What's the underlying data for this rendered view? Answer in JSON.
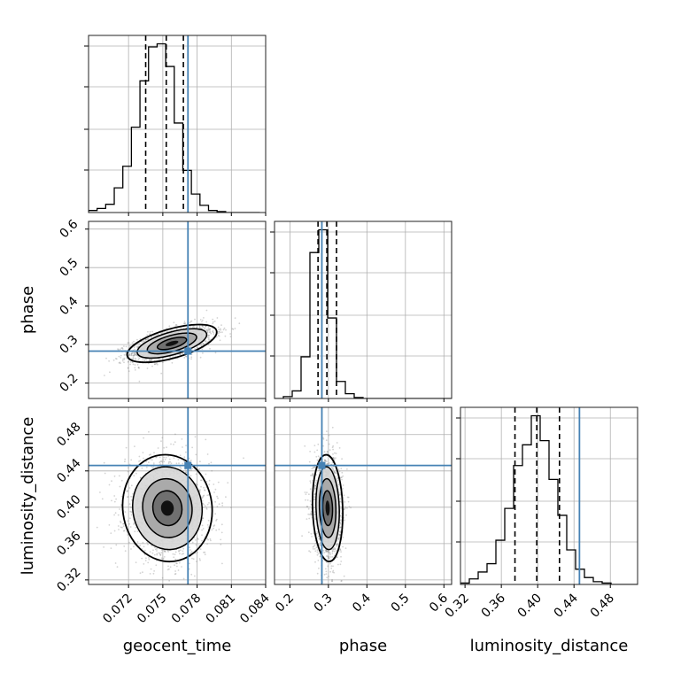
{
  "chart_data": {
    "type": "corner",
    "parameters": [
      {
        "name": "geocent_time",
        "axis_label": "geocent_time",
        "range": [
          0.0685,
          0.084
        ],
        "ticks": [
          "0.072",
          "0.075",
          "0.078",
          "0.081",
          "0.084"
        ],
        "truth": 0.0772,
        "quantiles": [
          0.0735,
          0.0753,
          0.0768
        ],
        "hist_bin_edges_start": 0.0685,
        "hist_bin_width": 0.00075,
        "hist_counts": [
          2,
          4,
          8,
          24,
          45,
          83,
          128,
          161,
          164,
          142,
          87,
          41,
          18,
          7,
          2,
          1,
          0,
          0,
          0,
          0
        ]
      },
      {
        "name": "phase",
        "axis_label": "phase",
        "range": [
          0.16,
          0.62
        ],
        "ticks": [
          "0.2",
          "0.3",
          "0.4",
          "0.5",
          "0.6"
        ],
        "truth": 0.283,
        "quantiles": [
          0.273,
          0.296,
          0.321
        ],
        "hist_bin_edges_start": 0.16,
        "hist_bin_width": 0.023,
        "hist_counts": [
          0,
          2,
          8,
          44,
          154,
          178,
          85,
          18,
          5,
          1,
          0,
          0,
          0,
          0,
          0,
          0,
          0,
          0,
          0,
          0
        ]
      },
      {
        "name": "luminosity_distance",
        "axis_label": "luminosity_distance",
        "range": [
          0.315,
          0.51
        ],
        "ticks": [
          "0.32",
          "0.36",
          "0.40",
          "0.44",
          "0.48"
        ],
        "truth": 0.446,
        "quantiles": [
          0.375,
          0.399,
          0.424
        ],
        "hist_bin_edges_start": 0.315,
        "hist_bin_width": 0.00975,
        "hist_counts": [
          1,
          4,
          9,
          15,
          32,
          55,
          86,
          101,
          122,
          104,
          76,
          50,
          25,
          11,
          5,
          2,
          1,
          0,
          0,
          0
        ]
      }
    ],
    "pairs": [
      {
        "x": "geocent_time",
        "y": "phase",
        "mean": [
          0.0758,
          0.303
        ],
        "sigma": [
          0.0016,
          0.02
        ],
        "correlation": 0.6
      },
      {
        "x": "geocent_time",
        "y": "luminosity_distance",
        "mean": [
          0.0754,
          0.399
        ],
        "sigma": [
          0.0016,
          0.024
        ],
        "correlation": -0.05
      },
      {
        "x": "phase",
        "y": "luminosity_distance",
        "mean": [
          0.298,
          0.399
        ],
        "sigma": [
          0.016,
          0.024
        ],
        "correlation": -0.1
      }
    ],
    "truth_color": "#4682b4",
    "hist_color": "#000000",
    "scatter_color": "#808080",
    "grid": true,
    "legend": "none"
  }
}
